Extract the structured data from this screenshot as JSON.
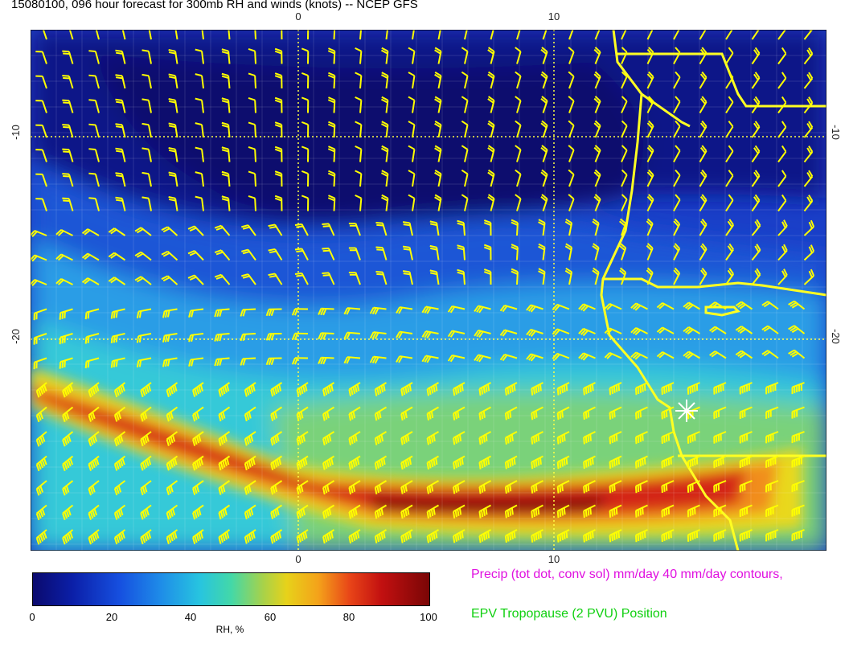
{
  "title": "15080100, 096 hour forecast for 300mb RH and winds (knots) -- NCEP GFS",
  "axes": {
    "top_ticks": [
      "0",
      "10"
    ],
    "bottom_ticks": [
      "0",
      "10"
    ],
    "left_ticks": [
      "-10",
      "-20"
    ],
    "right_ticks": [
      "-10",
      "-20"
    ]
  },
  "colorbar": {
    "labels": [
      "0",
      "20",
      "40",
      "60",
      "80",
      "100"
    ],
    "title": "RH, %",
    "colors": [
      "#0b0a6e",
      "#1650e0",
      "#27c4e0",
      "#a7d24a",
      "#e7d21a",
      "#e84418",
      "#7a0606"
    ]
  },
  "legend": {
    "precip": "Precip (tot dot, conv sol) mm/day 40 mm/day contours,",
    "tropopause": "EPV Tropopause (2 PVU) Position"
  },
  "overlay": {
    "barb_color": "#ffff00",
    "coastline_color": "#ffff22",
    "marker": "asterisk-marker"
  }
}
